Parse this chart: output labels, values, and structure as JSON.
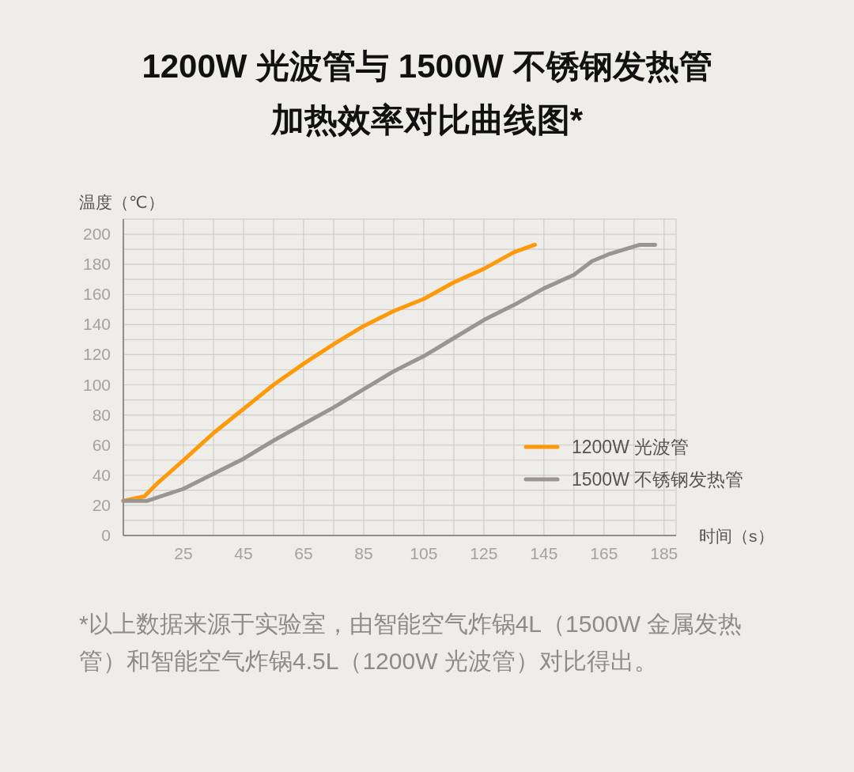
{
  "chart_data": {
    "type": "line",
    "title": "1200W 光波管与 1500W 不锈钢发热管加热效率对比曲线图*",
    "xlabel": "时间（s）",
    "ylabel": "温度（℃）",
    "xlim": [
      5,
      189
    ],
    "xticks": [
      {
        "value": 15,
        "label": null
      },
      25,
      {
        "value": 35,
        "label": null
      },
      45,
      {
        "value": 55,
        "label": null
      },
      65,
      {
        "value": 75,
        "label": null
      },
      85,
      {
        "value": 95,
        "label": null
      },
      105,
      {
        "value": 115,
        "label": null
      },
      125,
      {
        "value": 135,
        "label": null
      },
      145,
      {
        "value": 155,
        "label": null
      },
      165,
      {
        "value": 175,
        "label": null
      },
      185
    ],
    "ylim": [
      0,
      210
    ],
    "yticks": [
      0,
      {
        "value": 10,
        "label": null
      },
      20,
      {
        "value": 30,
        "label": null
      },
      40,
      {
        "value": 50,
        "label": null
      },
      60,
      {
        "value": 70,
        "label": null
      },
      80,
      {
        "value": 90,
        "label": null
      },
      100,
      {
        "value": 110,
        "label": null
      },
      120,
      {
        "value": 130,
        "label": null
      },
      140,
      {
        "value": 150,
        "label": null
      },
      160,
      {
        "value": 170,
        "label": null
      },
      180,
      {
        "value": 190,
        "label": null
      },
      200
    ],
    "grid": true,
    "legend": "right",
    "line_style": "solid",
    "series": [
      {
        "name": "1200W 光波管",
        "color": "#fd9a0c",
        "x": [
          5,
          12,
          16,
          20.5,
          25,
          35,
          45,
          55,
          65,
          75,
          85,
          95,
          105,
          115,
          125,
          135,
          142
        ],
        "values": [
          23,
          26,
          34,
          42,
          50,
          68,
          84,
          100,
          114,
          127,
          139,
          149,
          157,
          168,
          177,
          188,
          193
        ]
      },
      {
        "name": "1500W 不锈钢发热管",
        "color": "#9b9592",
        "x": [
          5,
          13,
          25,
          35,
          45,
          55,
          65,
          75,
          85,
          95,
          105,
          115,
          125,
          135,
          145,
          155,
          161,
          167,
          177,
          182
        ],
        "values": [
          23,
          23,
          31,
          41,
          51,
          63,
          74,
          85,
          97,
          109,
          119,
          131,
          143,
          153,
          164,
          173,
          182,
          187,
          193,
          193
        ]
      }
    ],
    "annotations": [
      "*以上数据来源于实验室，由智能空气炸锅4L（1500W 金属发热管）和智能空气炸锅4.5L（1200W 光波管）对比得出。"
    ]
  }
}
